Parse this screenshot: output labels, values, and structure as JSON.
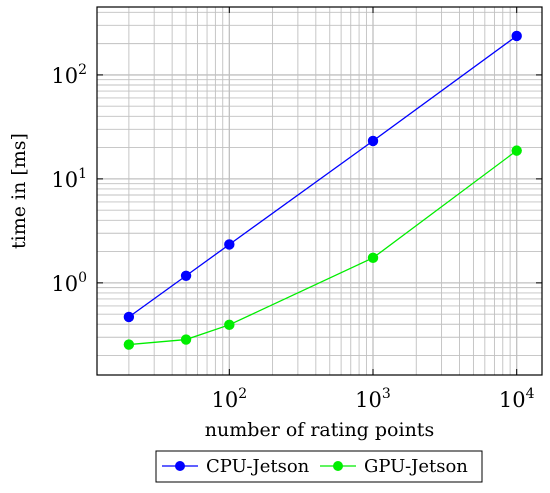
{
  "chart_data": {
    "type": "line",
    "xscale": "log",
    "yscale": "log",
    "xlim": [
      12,
      15000
    ],
    "ylim": [
      0.13,
      450
    ],
    "xlabel": "number of rating points",
    "ylabel": "time in [ms]",
    "grid": true,
    "legend_position": "bottom-center",
    "x_ticks": [
      {
        "base": "10",
        "exp": "2",
        "value": 100
      },
      {
        "base": "10",
        "exp": "3",
        "value": 1000
      },
      {
        "base": "10",
        "exp": "4",
        "value": 10000
      }
    ],
    "y_ticks": [
      {
        "base": "10",
        "exp": "0",
        "value": 1
      },
      {
        "base": "10",
        "exp": "1",
        "value": 10
      },
      {
        "base": "10",
        "exp": "2",
        "value": 100
      }
    ],
    "series": [
      {
        "name": "CPU-Jetson",
        "color": "#0000ff",
        "x": [
          20,
          50,
          100,
          1000,
          10000
        ],
        "y": [
          0.47,
          1.17,
          2.34,
          23.2,
          237
        ]
      },
      {
        "name": "GPU-Jetson",
        "color": "#00ee00",
        "x": [
          20,
          50,
          100,
          1000,
          10000
        ],
        "y": [
          0.255,
          0.285,
          0.395,
          1.74,
          18.7
        ]
      }
    ]
  }
}
